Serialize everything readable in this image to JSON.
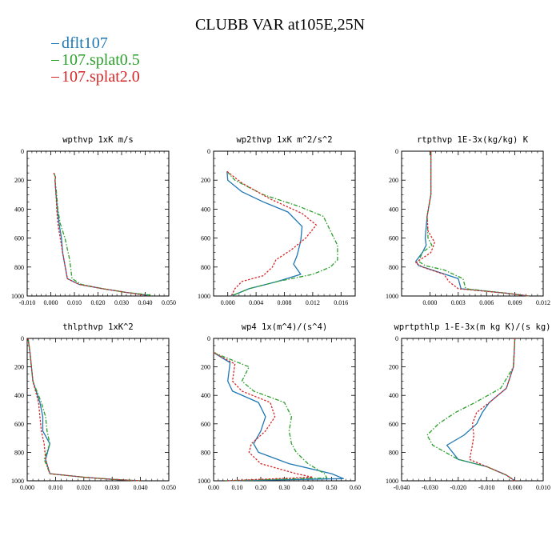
{
  "title": "CLUBB VAR at105E,25N",
  "legend": [
    {
      "label": "dflt107",
      "color": "#1f77b4"
    },
    {
      "label": "107.splat0.5",
      "color": "#2ca02c"
    },
    {
      "label": "107.splat2.0",
      "color": "#d62728"
    }
  ],
  "chart_data": [
    {
      "type": "line",
      "title": "wpthvp  1xK m/s",
      "xlim": [
        -0.01,
        0.05
      ],
      "ylim": [
        1000,
        0
      ],
      "xticks": [
        -0.01,
        0.0,
        0.01,
        0.02,
        0.03,
        0.04,
        0.05
      ],
      "xticklabels": [
        "-0.010",
        "0.000",
        "0.010",
        "0.020",
        "0.030",
        "0.040",
        "0.050"
      ],
      "yticks": [
        0,
        200,
        400,
        600,
        800,
        1000
      ],
      "series": [
        {
          "name": "dflt107",
          "x": [
            0.0013,
            0.002,
            0.0018,
            0.0022,
            0.0028,
            0.0035,
            0.0045,
            0.005,
            0.007,
            0.012,
            0.022,
            0.032,
            0.041
          ],
          "y": [
            150,
            180,
            200,
            300,
            400,
            500,
            600,
            700,
            880,
            920,
            950,
            975,
            995
          ]
        },
        {
          "name": "107.splat0.5",
          "x": [
            0.0013,
            0.002,
            0.0018,
            0.0025,
            0.003,
            0.004,
            0.006,
            0.008,
            0.009,
            0.013,
            0.022,
            0.032,
            0.043
          ],
          "y": [
            150,
            180,
            200,
            300,
            400,
            500,
            600,
            750,
            880,
            920,
            950,
            975,
            995
          ]
        },
        {
          "name": "107.splat2.0",
          "x": [
            0.0013,
            0.002,
            0.0018,
            0.0022,
            0.0025,
            0.003,
            0.004,
            0.005,
            0.007,
            0.012,
            0.022,
            0.032,
            0.04
          ],
          "y": [
            150,
            180,
            200,
            300,
            400,
            500,
            600,
            700,
            880,
            920,
            950,
            975,
            995
          ]
        }
      ]
    },
    {
      "type": "line",
      "title": "wp2thvp  1xK m^2/s^2",
      "xlim": [
        -0.002,
        0.018
      ],
      "ylim": [
        1000,
        0
      ],
      "xticks": [
        0.0,
        0.004,
        0.008,
        0.012,
        0.016
      ],
      "xticklabels": [
        "0.000",
        "0.004",
        "0.008",
        "0.012",
        "0.016"
      ],
      "yticks": [
        0,
        200,
        400,
        600,
        800,
        1000
      ],
      "series": [
        {
          "name": "dflt107",
          "x": [
            -0.0001,
            0.0,
            0.002,
            0.005,
            0.0085,
            0.0105,
            0.0103,
            0.0098,
            0.0093,
            0.0103,
            0.007,
            0.003,
            0.0005
          ],
          "y": [
            140,
            200,
            280,
            350,
            420,
            520,
            620,
            720,
            780,
            850,
            900,
            950,
            1000
          ]
        },
        {
          "name": "107.splat0.5",
          "x": [
            -0.0001,
            0.001,
            0.005,
            0.01,
            0.0135,
            0.0145,
            0.0155,
            0.0155,
            0.0145,
            0.012,
            0.007,
            0.003,
            0.0005
          ],
          "y": [
            140,
            200,
            300,
            380,
            450,
            550,
            650,
            750,
            800,
            850,
            900,
            950,
            1000
          ]
        },
        {
          "name": "107.splat2.0",
          "x": [
            -0.0001,
            0.002,
            0.006,
            0.0105,
            0.0125,
            0.011,
            0.009,
            0.0068,
            0.0063,
            0.005,
            0.002,
            0.001,
            0.0005
          ],
          "y": [
            140,
            220,
            330,
            430,
            510,
            600,
            680,
            750,
            800,
            860,
            900,
            950,
            1000
          ]
        }
      ]
    },
    {
      "type": "line",
      "title": "rtpthvp  1E-3x(kg/kg) K",
      "xlim": [
        -0.003,
        0.012
      ],
      "ylim": [
        1000,
        0
      ],
      "xticks": [
        0.0,
        0.003,
        0.006,
        0.009,
        0.012
      ],
      "xticklabels": [
        "0.000",
        "0.003",
        "0.006",
        "0.009",
        "0.012"
      ],
      "yticks": [
        0,
        200,
        400,
        600,
        800,
        1000
      ],
      "series": [
        {
          "name": "dflt107",
          "x": [
            0.0001,
            0.0001,
            -0.0003,
            -0.0005,
            -0.0004,
            -0.0008,
            -0.0015,
            -0.0012,
            0.0002,
            0.003,
            0.0033,
            0.008,
            0.0105
          ],
          "y": [
            0,
            300,
            450,
            600,
            650,
            700,
            760,
            790,
            820,
            880,
            950,
            980,
            1000
          ]
        },
        {
          "name": "107.splat0.5",
          "x": [
            0.0001,
            0.0001,
            -0.0003,
            -0.0002,
            0.0002,
            -0.0008,
            -0.0012,
            -0.0005,
            0.0015,
            0.0035,
            0.0038,
            0.008,
            0.0105
          ],
          "y": [
            0,
            300,
            450,
            600,
            650,
            700,
            760,
            790,
            820,
            880,
            950,
            980,
            1000
          ]
        },
        {
          "name": "107.splat2.0",
          "x": [
            0.0001,
            0.0001,
            -0.0003,
            -0.0002,
            0.0005,
            0.0001,
            -0.0015,
            -0.0008,
            0.0015,
            0.002,
            0.003,
            0.008,
            0.0105
          ],
          "y": [
            0,
            300,
            450,
            550,
            630,
            700,
            770,
            800,
            850,
            900,
            950,
            980,
            1000
          ]
        }
      ]
    },
    {
      "type": "line",
      "title": "thlpthvp  1xK^2",
      "xlim": [
        0.0,
        0.05
      ],
      "ylim": [
        1000,
        0
      ],
      "xticks": [
        0.0,
        0.01,
        0.02,
        0.03,
        0.04,
        0.05
      ],
      "xticklabels": [
        "0.000",
        "0.010",
        "0.020",
        "0.030",
        "0.040",
        "0.050"
      ],
      "yticks": [
        0,
        200,
        400,
        600,
        800,
        1000
      ],
      "series": [
        {
          "name": "dflt107",
          "x": [
            0.0003,
            0.001,
            0.0015,
            0.002,
            0.0045,
            0.0055,
            0.0055,
            0.008,
            0.0065,
            0.008,
            0.02,
            0.03,
            0.04
          ],
          "y": [
            0,
            100,
            200,
            300,
            450,
            550,
            650,
            740,
            850,
            950,
            975,
            990,
            1000
          ]
        },
        {
          "name": "107.splat0.5",
          "x": [
            0.0003,
            0.001,
            0.0015,
            0.002,
            0.005,
            0.0065,
            0.007,
            0.008,
            0.006,
            0.008,
            0.02,
            0.03,
            0.04
          ],
          "y": [
            0,
            100,
            200,
            300,
            450,
            550,
            650,
            740,
            850,
            950,
            975,
            990,
            1000
          ]
        },
        {
          "name": "107.splat2.0",
          "x": [
            0.0003,
            0.001,
            0.0015,
            0.002,
            0.004,
            0.0045,
            0.005,
            0.006,
            0.0065,
            0.008,
            0.02,
            0.03,
            0.04
          ],
          "y": [
            0,
            100,
            200,
            300,
            450,
            550,
            650,
            740,
            850,
            950,
            975,
            990,
            1000
          ]
        }
      ]
    },
    {
      "type": "line",
      "title": "wp4  1x(m^4)/(s^4)",
      "xlim": [
        0.0,
        0.6
      ],
      "ylim": [
        1000,
        0
      ],
      "xticks": [
        0.0,
        0.1,
        0.2,
        0.3,
        0.4,
        0.5,
        0.6
      ],
      "xticklabels": [
        "0.00",
        "0.10",
        "0.20",
        "0.30",
        "0.40",
        "0.50",
        "0.60"
      ],
      "yticks": [
        0,
        200,
        400,
        600,
        800,
        1000
      ],
      "series": [
        {
          "name": "dflt107",
          "x": [
            0.0,
            0.07,
            0.06,
            0.08,
            0.19,
            0.22,
            0.2,
            0.17,
            0.19,
            0.32,
            0.5,
            0.55,
            0.05
          ],
          "y": [
            100,
            170,
            300,
            370,
            450,
            550,
            650,
            740,
            800,
            880,
            950,
            985,
            1000
          ]
        },
        {
          "name": "107.splat0.5",
          "x": [
            0.0,
            0.15,
            0.12,
            0.17,
            0.3,
            0.33,
            0.32,
            0.33,
            0.35,
            0.4,
            0.47,
            0.48,
            0.05
          ],
          "y": [
            100,
            200,
            300,
            370,
            450,
            550,
            650,
            740,
            800,
            880,
            950,
            980,
            1000
          ]
        },
        {
          "name": "107.splat2.0",
          "x": [
            0.0,
            0.09,
            0.08,
            0.12,
            0.24,
            0.26,
            0.22,
            0.16,
            0.15,
            0.2,
            0.35,
            0.42,
            0.05
          ],
          "y": [
            100,
            180,
            300,
            370,
            450,
            550,
            650,
            740,
            800,
            880,
            950,
            975,
            1000
          ]
        }
      ]
    },
    {
      "type": "line",
      "title": "wprtpthlp  1-E-3x(m kg K)/(s kg)",
      "xlim": [
        -0.04,
        0.01
      ],
      "ylim": [
        1000,
        0
      ],
      "xticks": [
        -0.04,
        -0.03,
        -0.02,
        -0.01,
        0.0,
        0.01
      ],
      "xticklabels": [
        "-0.040",
        "-0.030",
        "-0.020",
        "-0.010",
        "0.000",
        "0.010"
      ],
      "yticks": [
        0,
        200,
        400,
        600,
        800,
        1000
      ],
      "series": [
        {
          "name": "dflt107",
          "x": [
            0.0,
            -0.0005,
            -0.003,
            -0.009,
            -0.0115,
            -0.0135,
            -0.018,
            -0.024,
            -0.02,
            -0.01,
            -0.003,
            0.0
          ],
          "y": [
            0,
            200,
            350,
            450,
            520,
            600,
            680,
            750,
            850,
            900,
            960,
            1000
          ]
        },
        {
          "name": "107.splat0.5",
          "x": [
            0.0,
            -0.0005,
            -0.005,
            -0.014,
            -0.021,
            -0.027,
            -0.031,
            -0.029,
            -0.02,
            -0.01,
            -0.003,
            0.0
          ],
          "y": [
            0,
            200,
            350,
            450,
            520,
            600,
            680,
            750,
            850,
            900,
            960,
            1000
          ]
        },
        {
          "name": "107.splat2.0",
          "x": [
            0.0,
            -0.0005,
            -0.003,
            -0.009,
            -0.0135,
            -0.015,
            -0.0145,
            -0.015,
            -0.016,
            -0.01,
            -0.003,
            0.0
          ],
          "y": [
            0,
            200,
            350,
            450,
            520,
            600,
            680,
            750,
            850,
            900,
            960,
            1000
          ]
        }
      ]
    }
  ]
}
